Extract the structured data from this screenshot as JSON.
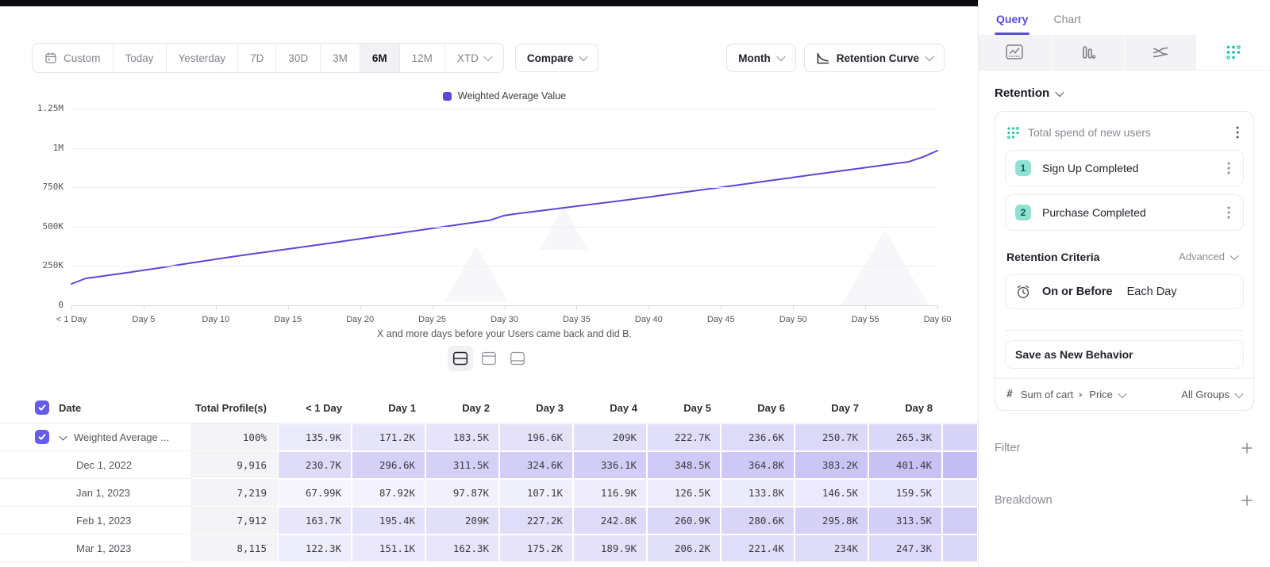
{
  "toolbar": {
    "ranges": [
      "Custom",
      "Today",
      "Yesterday",
      "7D",
      "30D",
      "3M",
      "6M",
      "12M",
      "XTD"
    ],
    "active_range": "6M",
    "compare_label": "Compare",
    "granularity_label": "Month",
    "chart_type_label": "Retention Curve"
  },
  "chart_data": {
    "type": "line",
    "series_name": "Weighted Average Value",
    "line_color": "#5a48d8",
    "values_unit": "K",
    "ylim": [
      0,
      1250
    ],
    "y_ticks": [
      "0",
      "250K",
      "500K",
      "750K",
      "1M",
      "1.25M"
    ],
    "y_tick_values": [
      0,
      250,
      500,
      750,
      1000,
      1250
    ],
    "x_ticks": [
      "< 1 Day",
      "Day 5",
      "Day 10",
      "Day 15",
      "Day 20",
      "Day 25",
      "Day 30",
      "Day 35",
      "Day 40",
      "Day 45",
      "Day 50",
      "Day 55",
      "Day 60"
    ],
    "x_tick_days": [
      0,
      5,
      10,
      15,
      20,
      25,
      30,
      35,
      40,
      45,
      50,
      55,
      60
    ],
    "xlabel": "X and more days before your Users came back and did B.",
    "points": [
      [
        0,
        135.9
      ],
      [
        1,
        171.2
      ],
      [
        2,
        183.5
      ],
      [
        3,
        196.6
      ],
      [
        4,
        209
      ],
      [
        5,
        222.7
      ],
      [
        6,
        236.6
      ],
      [
        7,
        250.7
      ],
      [
        8,
        265.3
      ],
      [
        10,
        293
      ],
      [
        12,
        320
      ],
      [
        15,
        358
      ],
      [
        18,
        396
      ],
      [
        20,
        423
      ],
      [
        22,
        449
      ],
      [
        25,
        489
      ],
      [
        27,
        515
      ],
      [
        29,
        541
      ],
      [
        30,
        571
      ],
      [
        31,
        584
      ],
      [
        33,
        607
      ],
      [
        35,
        630
      ],
      [
        38,
        664
      ],
      [
        40,
        688
      ],
      [
        42,
        713
      ],
      [
        45,
        750
      ],
      [
        48,
        788
      ],
      [
        50,
        813
      ],
      [
        52,
        838
      ],
      [
        55,
        875
      ],
      [
        57,
        900
      ],
      [
        58,
        912
      ],
      [
        59,
        943
      ],
      [
        60,
        983
      ]
    ]
  },
  "view_toggle": {
    "options": [
      "split-view",
      "chart-view",
      "table-view"
    ],
    "active": "split-view"
  },
  "table": {
    "columns": [
      "Date",
      "Total Profile(s)",
      "< 1 Day",
      "Day 1",
      "Day 2",
      "Day 3",
      "Day 4",
      "Day 5",
      "Day 6",
      "Day 7",
      "Day 8"
    ],
    "rows": [
      {
        "date": "Weighted Average ...",
        "total": "100%",
        "checked": true,
        "expandable": true,
        "values": [
          "135.9K",
          "171.2K",
          "183.5K",
          "196.6K",
          "209K",
          "222.7K",
          "236.6K",
          "250.7K",
          "265.3K"
        ]
      },
      {
        "date": "Dec 1, 2022",
        "total": "9,916",
        "values": [
          "230.7K",
          "296.6K",
          "311.5K",
          "324.6K",
          "336.1K",
          "348.5K",
          "364.8K",
          "383.2K",
          "401.4K"
        ]
      },
      {
        "date": "Jan 1, 2023",
        "total": "7,219",
        "values": [
          "67.99K",
          "87.92K",
          "97.87K",
          "107.1K",
          "116.9K",
          "126.5K",
          "133.8K",
          "146.5K",
          "159.5K"
        ]
      },
      {
        "date": "Feb 1, 2023",
        "total": "7,912",
        "values": [
          "163.7K",
          "195.4K",
          "209K",
          "227.2K",
          "242.8K",
          "260.9K",
          "280.6K",
          "295.8K",
          "313.5K"
        ]
      },
      {
        "date": "Mar 1, 2023",
        "total": "8,115",
        "values": [
          "122.3K",
          "151.1K",
          "162.3K",
          "175.2K",
          "189.9K",
          "206.2K",
          "221.4K",
          "234K",
          "247.3K"
        ]
      }
    ]
  },
  "panel": {
    "tabs": [
      "Query",
      "Chart"
    ],
    "active_tab": "Query",
    "section_title": "Retention",
    "behavior": {
      "title": "Total spend of new users",
      "steps": [
        {
          "num": "1",
          "label": "Sign Up Completed"
        },
        {
          "num": "2",
          "label": "Purchase Completed"
        }
      ]
    },
    "criteria": {
      "label": "Retention Criteria",
      "mode": "Advanced",
      "condition": "On or Before",
      "period": "Each Day"
    },
    "save_button": "Save as New Behavior",
    "measure": {
      "prefix": "#",
      "label": "Sum of cart",
      "property": "Price",
      "groups": "All Groups"
    },
    "filter_label": "Filter",
    "breakdown_label": "Breakdown"
  },
  "colors": {
    "accent": "#5b4bd8",
    "teal": "#2fc1a6",
    "heat": "#6151df"
  }
}
